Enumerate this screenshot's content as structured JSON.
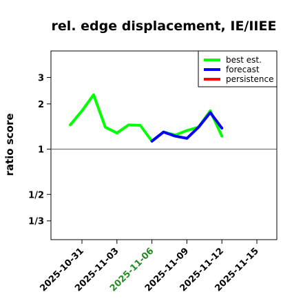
{
  "chart_data": {
    "type": "line",
    "title": "rel. edge displacement, IE/IIEE",
    "ylabel": "ratio score",
    "xlabel": "",
    "y_scale": "log",
    "ylim": [
      0.25,
      4.5
    ],
    "xlim": [
      "2025-10-28",
      "2025-11-17"
    ],
    "y_ticks": [
      {
        "value": 0.3333,
        "label": "1/3"
      },
      {
        "value": 0.5,
        "label": "1/2"
      },
      {
        "value": 1,
        "label": "1"
      },
      {
        "value": 2,
        "label": "2"
      },
      {
        "value": 3,
        "label": "3"
      }
    ],
    "x_ticks": [
      {
        "date": "2025-10-31",
        "label": "2025-10-31",
        "color": "#000000"
      },
      {
        "date": "2025-11-03",
        "label": "2025-11-03",
        "color": "#000000"
      },
      {
        "date": "2025-11-06",
        "label": "2025-11-06",
        "color": "#228b22"
      },
      {
        "date": "2025-11-09",
        "label": "2025-11-09",
        "color": "#000000"
      },
      {
        "date": "2025-11-12",
        "label": "2025-11-12",
        "color": "#000000"
      },
      {
        "date": "2025-11-15",
        "label": "2025-11-15",
        "color": "#000000"
      }
    ],
    "reference_line": 1,
    "grid": false,
    "legend_position": "top-right",
    "series": [
      {
        "name": "best est.",
        "color": "#00ff00",
        "points": [
          {
            "x": "2025-10-30",
            "y": 1.45
          },
          {
            "x": "2025-10-31",
            "y": 1.8
          },
          {
            "x": "2025-11-01",
            "y": 2.3
          },
          {
            "x": "2025-11-02",
            "y": 1.4
          },
          {
            "x": "2025-11-03",
            "y": 1.28
          },
          {
            "x": "2025-11-04",
            "y": 1.45
          },
          {
            "x": "2025-11-05",
            "y": 1.44
          },
          {
            "x": "2025-11-06",
            "y": 1.13
          },
          {
            "x": "2025-11-07",
            "y": 1.3
          },
          {
            "x": "2025-11-08",
            "y": 1.24
          },
          {
            "x": "2025-11-09",
            "y": 1.33
          },
          {
            "x": "2025-11-10",
            "y": 1.4
          },
          {
            "x": "2025-11-11",
            "y": 1.8
          },
          {
            "x": "2025-11-12",
            "y": 1.22
          }
        ]
      },
      {
        "name": "forecast",
        "color": "#0000ff",
        "points": [
          {
            "x": "2025-11-06",
            "y": 1.13
          },
          {
            "x": "2025-11-07",
            "y": 1.3
          },
          {
            "x": "2025-11-08",
            "y": 1.22
          },
          {
            "x": "2025-11-09",
            "y": 1.18
          },
          {
            "x": "2025-11-10",
            "y": 1.4
          },
          {
            "x": "2025-11-11",
            "y": 1.75
          },
          {
            "x": "2025-11-12",
            "y": 1.38
          }
        ]
      },
      {
        "name": "persistence",
        "color": "#ff0000",
        "points": []
      }
    ]
  }
}
